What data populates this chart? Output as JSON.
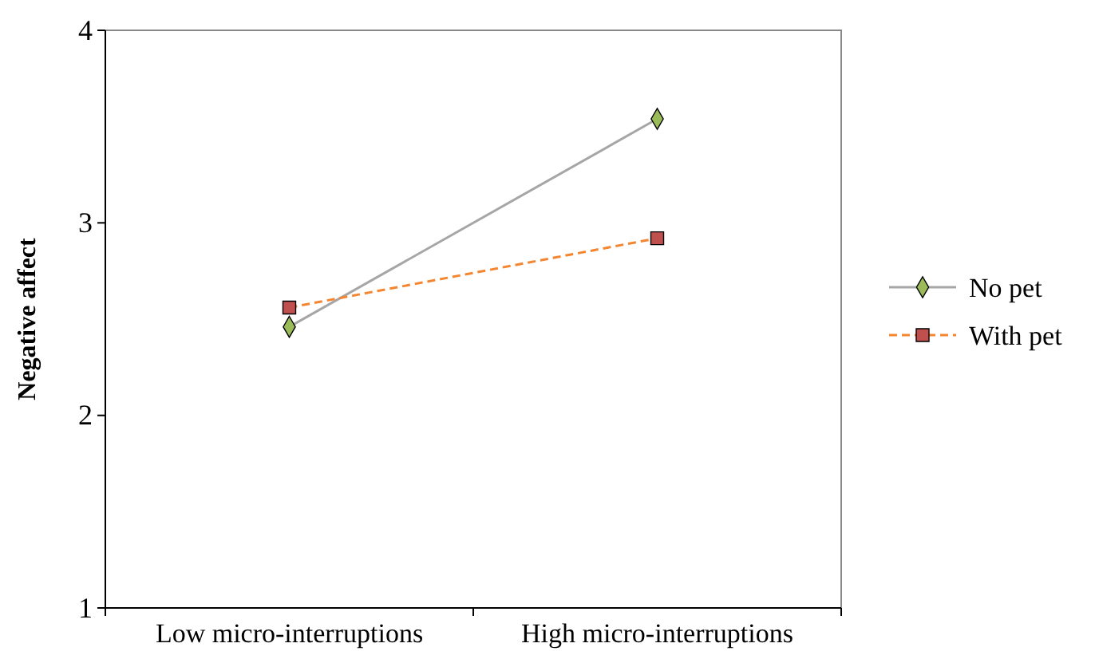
{
  "chart_data": {
    "type": "line",
    "ylabel": "Negative affect",
    "categories": [
      "Low micro-interruptions",
      "High micro-interruptions"
    ],
    "ylim": [
      1,
      4
    ],
    "yticks": [
      1,
      2,
      3,
      4
    ],
    "grid": false,
    "legend": "right",
    "series": [
      {
        "name": "No pet",
        "color": "#a6a6a6",
        "values": [
          2.46,
          3.54
        ],
        "marker": "diamond",
        "line_style": "solid"
      },
      {
        "name": "With pet",
        "color": "#f58631",
        "values": [
          2.56,
          2.92
        ],
        "marker": "square",
        "line_style": "dashed"
      }
    ]
  }
}
